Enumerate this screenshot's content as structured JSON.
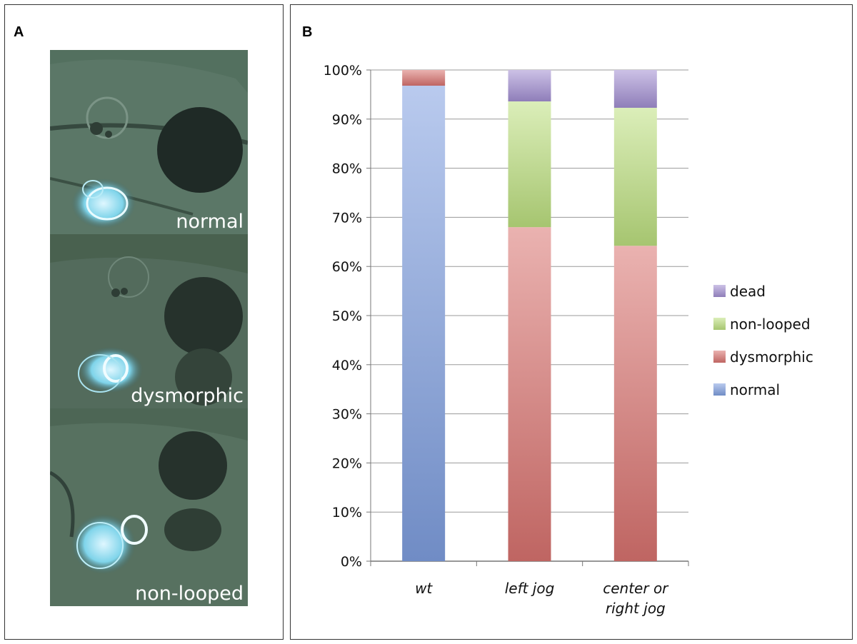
{
  "panel_a": {
    "letter": "A",
    "images": [
      {
        "label": "normal"
      },
      {
        "label": "dysmorphic"
      },
      {
        "label": "non-looped"
      }
    ]
  },
  "panel_b": {
    "letter": "B"
  },
  "chart_data": {
    "type": "bar",
    "stacked": true,
    "categories": [
      "wt",
      "left jog",
      "center or\nright jog"
    ],
    "series": [
      {
        "name": "normal",
        "color": "#7f9fe0",
        "values": [
          96.8,
          0,
          0
        ]
      },
      {
        "name": "dysmorphic",
        "color": "#d9736f",
        "values": [
          3.2,
          68,
          64.2
        ]
      },
      {
        "name": "non-looped",
        "color": "#bde07f",
        "values": [
          0,
          25.6,
          28.1
        ]
      },
      {
        "name": "dead",
        "color": "#a28fd2",
        "values": [
          0,
          6.4,
          7.7
        ]
      }
    ],
    "ylim": [
      0,
      100
    ],
    "yticks": [
      "0%",
      "10%",
      "20%",
      "30%",
      "40%",
      "50%",
      "60%",
      "70%",
      "80%",
      "90%",
      "100%"
    ],
    "grid": true,
    "legend": {
      "position": "right",
      "order": [
        "dead",
        "non-looped",
        "dysmorphic",
        "normal"
      ]
    }
  }
}
